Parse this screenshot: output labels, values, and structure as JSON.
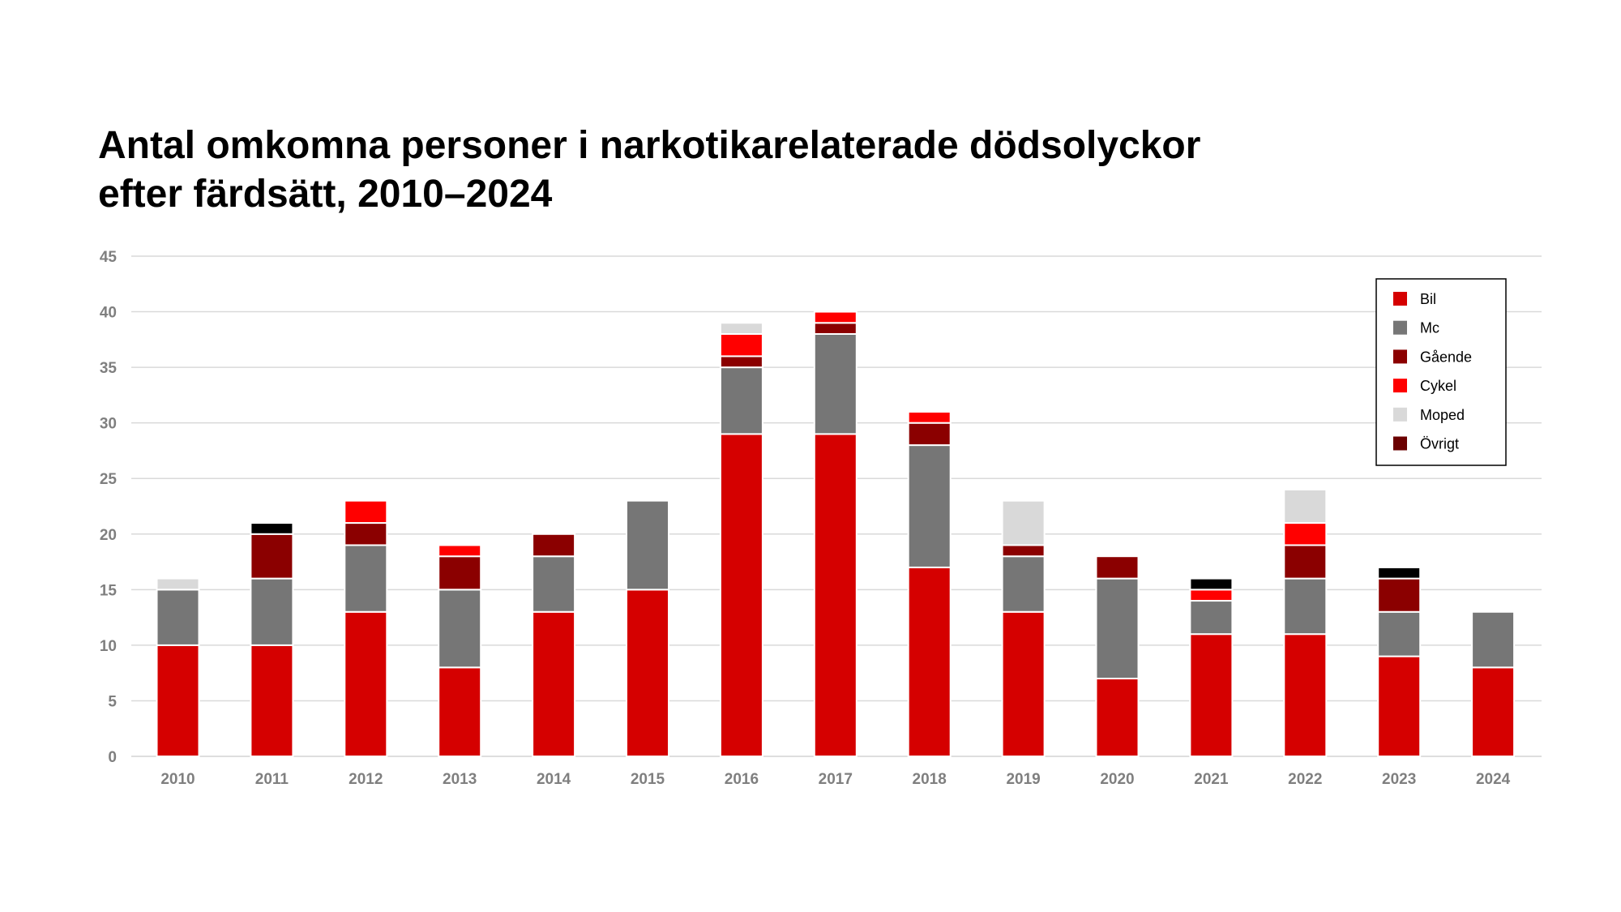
{
  "chart_data": {
    "type": "bar",
    "stacked": true,
    "title": "Antal omkomna personer i narkotikarelaterade dödsolyckor efter färdsätt, 2010–2024",
    "title_lines": [
      "Antal omkomna personer i narkotikarelaterade dödsolyckor",
      "efter färdsätt, 2010–2024"
    ],
    "categories": [
      "2010",
      "2011",
      "2012",
      "2013",
      "2014",
      "2015",
      "2016",
      "2017",
      "2018",
      "2019",
      "2020",
      "2021",
      "2022",
      "2023",
      "2024"
    ],
    "series": [
      {
        "name": "Bil",
        "color": "#d50000",
        "values": [
          10,
          10,
          13,
          8,
          13,
          15,
          29,
          29,
          17,
          13,
          7,
          11,
          11,
          9,
          8
        ]
      },
      {
        "name": "Mc",
        "color": "#767676",
        "values": [
          5,
          6,
          6,
          7,
          5,
          8,
          6,
          9,
          11,
          5,
          9,
          3,
          5,
          4,
          5
        ]
      },
      {
        "name": "Gående",
        "color": "#8b0000",
        "values": [
          0,
          4,
          2,
          3,
          2,
          0,
          1,
          1,
          2,
          1,
          2,
          0,
          3,
          3,
          0
        ]
      },
      {
        "name": "Cykel",
        "color": "#ff0000",
        "values": [
          0,
          0,
          2,
          1,
          0,
          0,
          2,
          1,
          1,
          0,
          0,
          1,
          2,
          0,
          0
        ]
      },
      {
        "name": "Moped",
        "color": "#d9d9d9",
        "values": [
          1,
          0,
          0,
          0,
          0,
          0,
          1,
          0,
          0,
          4,
          0,
          0,
          3,
          0,
          0
        ]
      },
      {
        "name": "Övrigt",
        "color": "#000000",
        "legend_color": "#6b0000",
        "values": [
          0,
          1,
          0,
          0,
          0,
          0,
          0,
          0,
          0,
          0,
          0,
          1,
          0,
          1,
          0
        ]
      }
    ],
    "ylim": [
      0,
      45
    ],
    "yticks": [
      0,
      5,
      10,
      15,
      20,
      25,
      30,
      35,
      40,
      45
    ],
    "xlabel": "",
    "ylabel": "",
    "grid": true,
    "legend_position": "top-right"
  }
}
